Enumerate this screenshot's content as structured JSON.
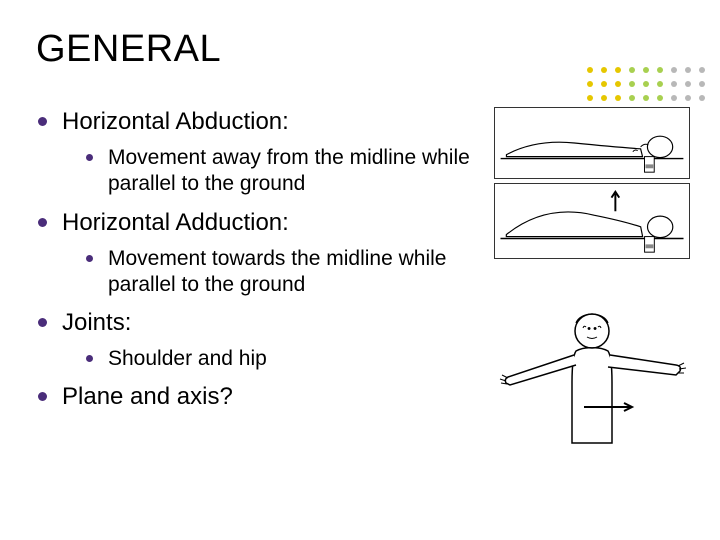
{
  "title": "GENERAL",
  "bullet_color": "#4a2d7a",
  "title_fontsize": 38,
  "body_fontsize_l1": 24,
  "body_fontsize_l2": 21,
  "background_color": "#ffffff",
  "items": [
    {
      "label": "Horizontal Abduction:",
      "sub": [
        {
          "label": "Movement away from the midline while parallel to the ground"
        }
      ]
    },
    {
      "label": "Horizontal Adduction:",
      "sub": [
        {
          "label": "Movement towards the midline while parallel to the ground"
        }
      ]
    },
    {
      "label": "Joints:",
      "sub": [
        {
          "label": "Shoulder and hip"
        }
      ]
    },
    {
      "label": "Plane and axis?",
      "sub": []
    }
  ],
  "deco_dots": {
    "columns": 9,
    "rows": 3,
    "colors": [
      "#e6c700",
      "#e6c700",
      "#e6c700",
      "#a8d050",
      "#a8d050",
      "#a8d050",
      "#b8b8b8",
      "#b8b8b8",
      "#b8b8b8"
    ],
    "dot_radius": 3,
    "spacing": 14
  }
}
